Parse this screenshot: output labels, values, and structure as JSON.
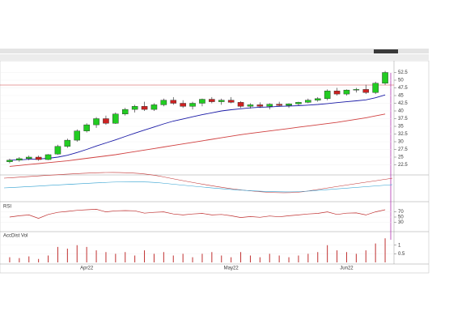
{
  "chart_data": [
    {
      "type": "candlestick",
      "categories": [
        null,
        null,
        null,
        null,
        null,
        null,
        null,
        null,
        "Apr22",
        null,
        null,
        null,
        null,
        null,
        null,
        null,
        null,
        null,
        null,
        null,
        null,
        null,
        null,
        "May22",
        null,
        null,
        null,
        null,
        null,
        null,
        null,
        null,
        null,
        null,
        null,
        "Jun22",
        null,
        null,
        null,
        null
      ],
      "open": [
        23.5,
        24,
        24.5,
        25,
        24.2,
        26,
        28.5,
        30.5,
        33.5,
        35.5,
        37.5,
        36,
        39,
        40.5,
        41.5,
        40.5,
        42,
        43.5,
        42.5,
        41.5,
        42.5,
        43.8,
        43,
        43.5,
        42.8,
        41.5,
        42,
        41.5,
        42.2,
        41.8,
        42.3,
        42.8,
        43.5,
        44,
        46.5,
        45.5,
        46.8,
        47,
        46,
        49
      ],
      "high": [
        24.5,
        25,
        25.5,
        25.5,
        26,
        29,
        31,
        34,
        36,
        38,
        38.5,
        39.5,
        41,
        42,
        43,
        42.5,
        44,
        44.5,
        43.5,
        43,
        44,
        44.5,
        44,
        44.5,
        43.2,
        42.5,
        42.8,
        42.5,
        43,
        42.5,
        43,
        44,
        44.5,
        47,
        47.5,
        47,
        47.5,
        48.5,
        49.5,
        53
      ],
      "low": [
        23,
        23.5,
        24,
        23.8,
        24,
        25.8,
        28,
        30,
        33,
        34.5,
        35.5,
        35.8,
        38.5,
        39.5,
        40,
        40,
        41.5,
        42,
        41,
        40.5,
        41.5,
        42.5,
        42,
        42.5,
        41,
        40.8,
        41,
        40.5,
        41.5,
        41,
        41.8,
        42.5,
        43,
        43.5,
        45,
        45,
        46,
        45.5,
        45.5,
        48.5
      ],
      "close": [
        24,
        24.5,
        25,
        24.2,
        25.8,
        28.5,
        30.5,
        33.5,
        35.5,
        37.5,
        36,
        39,
        40.5,
        41.5,
        40.5,
        42,
        43.5,
        42.5,
        41.5,
        42.5,
        43.8,
        43,
        43.5,
        42.8,
        41.5,
        42,
        41.5,
        42.2,
        41.8,
        42.3,
        42.8,
        43.5,
        44,
        46.5,
        45.5,
        46.8,
        47,
        46,
        49,
        52.5
      ],
      "up_color": "#22cc22",
      "down_color": "#cc2222",
      "lines": [
        {
          "color": "#1a1aa6",
          "values": [
            24,
            24.1,
            24.3,
            24.4,
            24.6,
            25,
            25.6,
            26.5,
            27.5,
            28.6,
            29.6,
            30.6,
            31.7,
            32.8,
            33.8,
            34.8,
            35.8,
            36.7,
            37.4,
            38.1,
            38.8,
            39.4,
            40,
            40.4,
            40.7,
            41,
            41.2,
            41.3,
            41.5,
            41.6,
            41.7,
            41.9,
            42.1,
            42.4,
            42.7,
            43,
            43.3,
            43.6,
            44.3,
            45.2
          ]
        },
        {
          "color": "#d04040",
          "values": [
            22,
            22.3,
            22.6,
            22.9,
            23.2,
            23.5,
            23.8,
            24.2,
            24.6,
            25,
            25.4,
            25.8,
            26.3,
            26.8,
            27.3,
            27.8,
            28.3,
            28.8,
            29.3,
            29.8,
            30.3,
            30.8,
            31.3,
            31.8,
            32.3,
            32.7,
            33.1,
            33.5,
            33.9,
            34.3,
            34.7,
            35.1,
            35.5,
            35.9,
            36.3,
            36.8,
            37.3,
            37.8,
            38.4,
            39
          ]
        }
      ],
      "ylim": [
        20,
        55
      ],
      "yticks": [
        22.5,
        25,
        27.5,
        30,
        32.5,
        35,
        37.5,
        40,
        42.5,
        45,
        47.5,
        50,
        52.5
      ]
    },
    {
      "type": "line",
      "title": "RSI",
      "color": "#c03030",
      "values": [
        50,
        55,
        58,
        45,
        60,
        68,
        72,
        76,
        78,
        80,
        70,
        74,
        75,
        74,
        65,
        68,
        70,
        62,
        58,
        62,
        64,
        58,
        60,
        55,
        48,
        52,
        49,
        54,
        51,
        55,
        58,
        62,
        64,
        70,
        60,
        65,
        66,
        58,
        70,
        78
      ],
      "ylim": [
        0,
        100
      ],
      "yticks": [
        30,
        50,
        70
      ]
    },
    {
      "type": "bar",
      "title": "AccDist Vol",
      "color": "#c03030",
      "values": [
        0.3,
        0.25,
        0.35,
        0.2,
        0.4,
        0.9,
        0.8,
        1.0,
        0.9,
        0.7,
        0.6,
        0.5,
        0.6,
        0.4,
        0.7,
        0.5,
        0.6,
        0.4,
        0.5,
        0.3,
        0.5,
        0.6,
        0.4,
        0.3,
        0.6,
        0.4,
        0.3,
        0.5,
        0.4,
        0.3,
        0.4,
        0.5,
        0.6,
        1.0,
        0.7,
        0.6,
        0.5,
        0.7,
        1.1,
        1.4
      ],
      "ylim": [
        0,
        1.6
      ],
      "yticks": [
        0.5,
        1
      ]
    }
  ]
}
